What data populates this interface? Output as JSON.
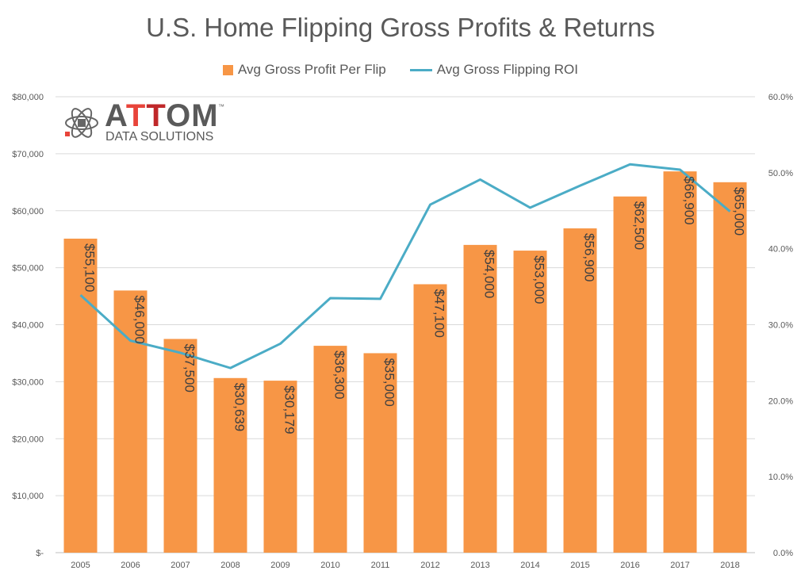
{
  "chart_data": {
    "type": "bar",
    "title": "U.S. Home Flipping Gross Profits & Returns",
    "categories": [
      "2005",
      "2006",
      "2007",
      "2008",
      "2009",
      "2010",
      "2011",
      "2012",
      "2013",
      "2014",
      "2015",
      "2016",
      "2017",
      "2018"
    ],
    "series": [
      {
        "name": "Avg Gross Profit Per Flip",
        "type": "bar",
        "axis": "left",
        "color": "#F79646",
        "values": [
          55100,
          46000,
          37500,
          30639,
          30179,
          36300,
          35000,
          47100,
          54000,
          53000,
          56900,
          62500,
          66900,
          65000
        ],
        "labels": [
          "$55,100",
          "$46,000",
          "$37,500",
          "$30,639",
          "$30,179",
          "$36,300",
          "$35,000",
          "$47,100",
          "$54,000",
          "$53,000",
          "$56,900",
          "$62,500",
          "$66,900",
          "$65,000"
        ]
      },
      {
        "name": "Avg Gross Flipping ROI",
        "type": "line",
        "axis": "right",
        "color": "#4BACC6",
        "values": [
          33.9,
          27.9,
          26.3,
          24.3,
          27.5,
          33.5,
          33.4,
          45.8,
          49.1,
          45.4,
          48.3,
          51.1,
          50.4,
          44.9
        ]
      }
    ],
    "y_left": {
      "min": 0,
      "max": 80000,
      "ticks": [
        0,
        10000,
        20000,
        30000,
        40000,
        50000,
        60000,
        70000,
        80000
      ],
      "tick_labels": [
        "$-",
        "$10,000",
        "$20,000",
        "$30,000",
        "$40,000",
        "$50,000",
        "$60,000",
        "$70,000",
        "$80,000"
      ]
    },
    "y_right": {
      "min": 0,
      "max": 60,
      "ticks": [
        0,
        10,
        20,
        30,
        40,
        50,
        60
      ],
      "tick_labels": [
        "0.0%",
        "10.0%",
        "20.0%",
        "30.0%",
        "40.0%",
        "50.0%",
        "60.0%"
      ]
    },
    "grid": true,
    "legend_position": "top-center"
  },
  "logo": {
    "name": "ATTOM",
    "sub": "DATA SOLUTIONS",
    "tm": "™"
  }
}
